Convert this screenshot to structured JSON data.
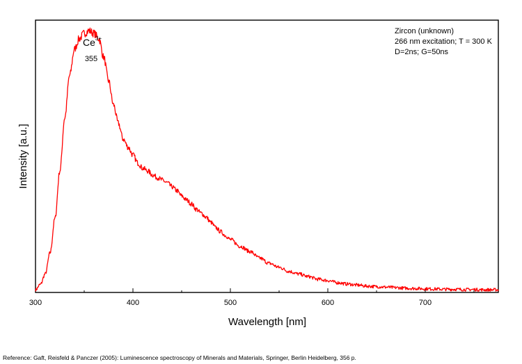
{
  "chart_data": {
    "type": "line",
    "xlabel": "Wavelength [nm]",
    "ylabel": "Intensity [a.u.]",
    "xlim": [
      300,
      775
    ],
    "ylim": [
      0,
      1.03
    ],
    "xticks": [
      "300",
      "400",
      "500",
      "600",
      "700"
    ],
    "yticks": [],
    "grid": false,
    "legend": "none",
    "info_box": {
      "lines": [
        "Zircon (unknown)",
        "266 nm excitation; T = 300 K",
        "D=2ns; G=50ns"
      ],
      "placement": "top-right"
    },
    "peak_annotation": {
      "ion": "Ce",
      "charge": "3+",
      "position_label": "355",
      "x": 355
    },
    "series": [
      {
        "color": "#ff0000",
        "x": [
          300,
          305,
          310,
          315,
          320,
          325,
          330,
          335,
          340,
          345,
          350,
          355,
          360,
          365,
          370,
          375,
          380,
          385,
          390,
          395,
          400,
          405,
          410,
          415,
          420,
          425,
          430,
          435,
          440,
          445,
          450,
          455,
          460,
          465,
          470,
          475,
          480,
          485,
          490,
          495,
          500,
          510,
          520,
          530,
          540,
          550,
          560,
          570,
          580,
          590,
          600,
          610,
          620,
          630,
          640,
          650,
          660,
          670,
          680,
          690,
          700,
          710,
          720,
          730,
          740,
          750,
          760,
          775
        ],
        "y": [
          0.01,
          0.03,
          0.07,
          0.15,
          0.28,
          0.46,
          0.66,
          0.82,
          0.92,
          0.96,
          0.98,
          0.99,
          0.98,
          0.96,
          0.89,
          0.8,
          0.71,
          0.64,
          0.58,
          0.55,
          0.52,
          0.49,
          0.47,
          0.46,
          0.445,
          0.435,
          0.425,
          0.415,
          0.4,
          0.385,
          0.365,
          0.35,
          0.335,
          0.315,
          0.3,
          0.285,
          0.265,
          0.245,
          0.23,
          0.215,
          0.2,
          0.175,
          0.155,
          0.13,
          0.11,
          0.095,
          0.08,
          0.07,
          0.06,
          0.05,
          0.045,
          0.037,
          0.032,
          0.028,
          0.024,
          0.022,
          0.02,
          0.018,
          0.016,
          0.015,
          0.014,
          0.013,
          0.012,
          0.012,
          0.011,
          0.011,
          0.01,
          0.01
        ]
      }
    ]
  },
  "reference": "Reference: Gaft, Reisfeld & Panczer (2005): Luminescence spectroscopy of Minerals and Materials, Springer, Berlin Heidelberg, 356 p."
}
